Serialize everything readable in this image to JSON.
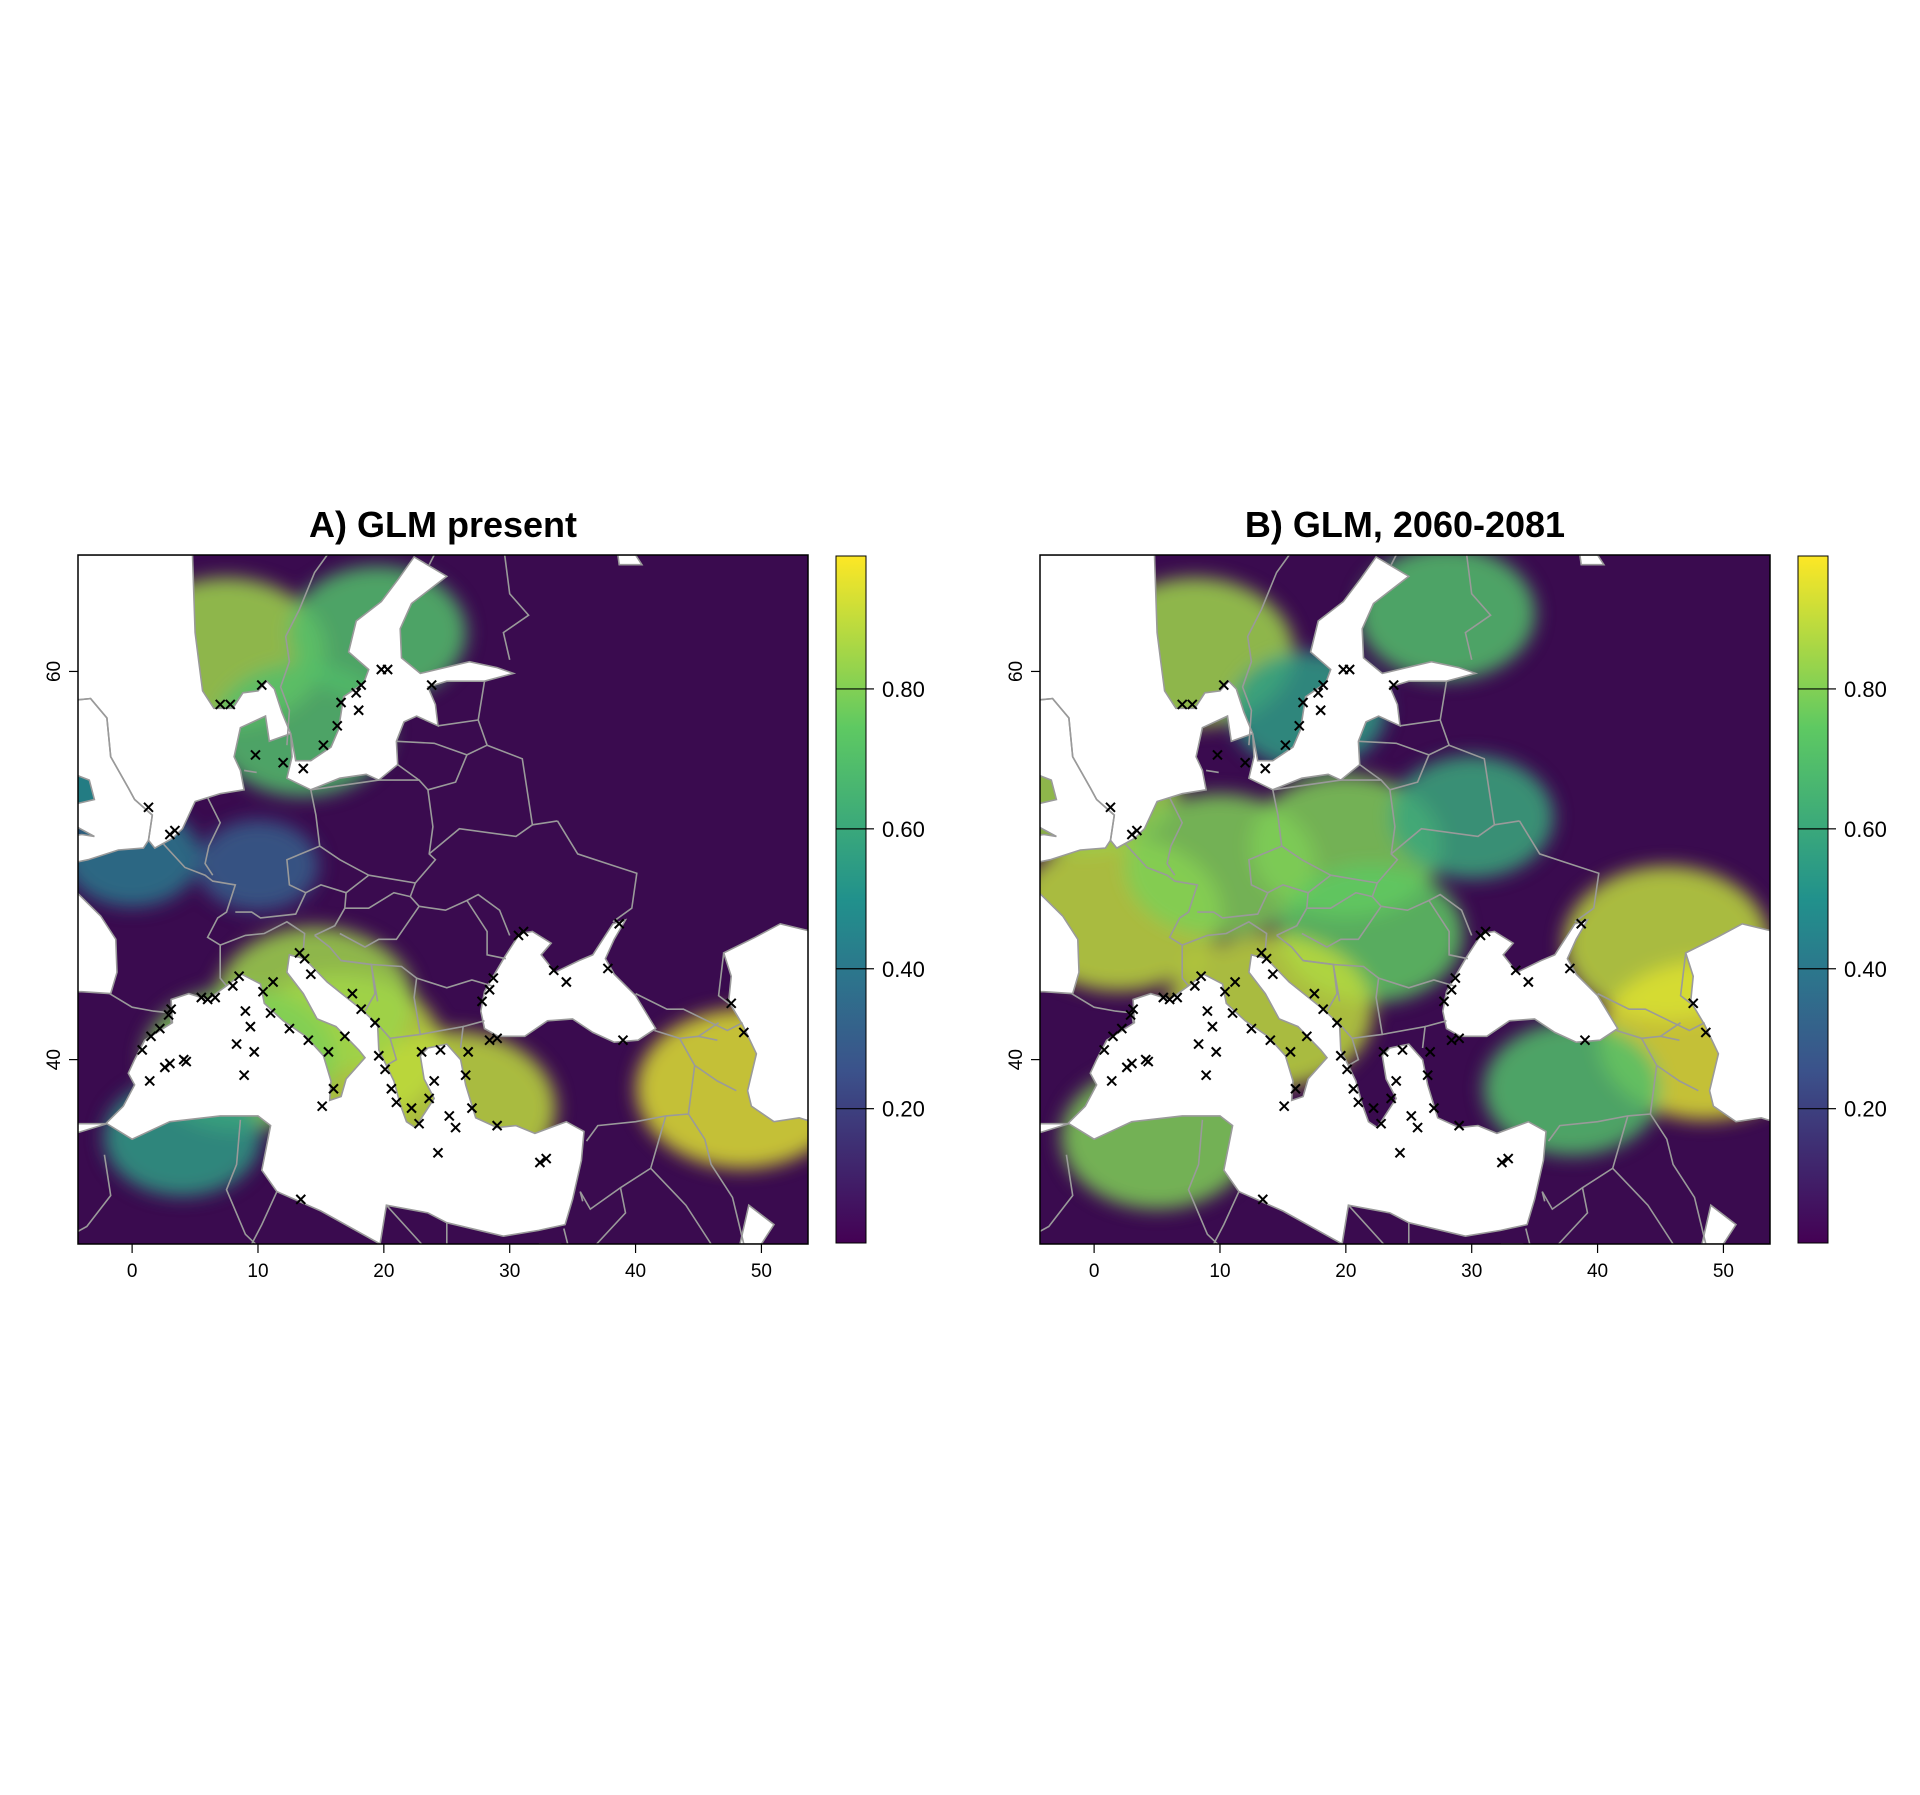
{
  "figure": {
    "panels": [
      {
        "id": "A",
        "title": "A) GLM present",
        "x_ticks": [
          "0",
          "10",
          "20",
          "30",
          "40",
          "50"
        ],
        "y_ticks": [
          "40",
          "60"
        ],
        "colorbar_ticks": [
          "0.20",
          "0.40",
          "0.60",
          "0.80"
        ],
        "hotspots": [
          {
            "lon": 48.5,
            "lat": 38.5,
            "value": 0.95
          },
          {
            "lon": 16.5,
            "lat": 40.5,
            "value": 0.9
          },
          {
            "lon": 25.5,
            "lat": 37.5,
            "value": 0.9
          },
          {
            "lon": 14.5,
            "lat": 43.0,
            "value": 0.85
          },
          {
            "lon": 8.5,
            "lat": 40.0,
            "value": 0.8
          },
          {
            "lon": 7.5,
            "lat": 61.0,
            "value": 0.85
          },
          {
            "lon": 13.5,
            "lat": 57.0,
            "value": 0.7
          },
          {
            "lon": 19.5,
            "lat": 62.0,
            "value": 0.7
          },
          {
            "lon": -2.0,
            "lat": 55.0,
            "value": 0.5
          },
          {
            "lon": 0.0,
            "lat": 50.5,
            "value": 0.4
          },
          {
            "lon": 10.0,
            "lat": 50.0,
            "value": 0.3
          },
          {
            "lon": 4.0,
            "lat": 36.0,
            "value": 0.55
          }
        ]
      },
      {
        "id": "B",
        "title": "B) GLM, 2060-2081",
        "x_ticks": [
          "0",
          "10",
          "20",
          "30",
          "40",
          "50"
        ],
        "y_ticks": [
          "40",
          "60"
        ],
        "colorbar_ticks": [
          "0.20",
          "0.40",
          "0.60",
          "0.80"
        ],
        "hotspots": [
          {
            "lon": 2.0,
            "lat": 47.5,
            "value": 0.9
          },
          {
            "lon": -1.0,
            "lat": 54.5,
            "value": 0.85
          },
          {
            "lon": 10.0,
            "lat": 50.0,
            "value": 0.8
          },
          {
            "lon": 20.0,
            "lat": 51.0,
            "value": 0.8
          },
          {
            "lon": 30.0,
            "lat": 52.5,
            "value": 0.6
          },
          {
            "lon": 22.0,
            "lat": 46.5,
            "value": 0.75
          },
          {
            "lon": 45.5,
            "lat": 46.0,
            "value": 0.9
          },
          {
            "lon": 48.5,
            "lat": 41.0,
            "value": 0.95
          },
          {
            "lon": 14.0,
            "lat": 42.5,
            "value": 0.9
          },
          {
            "lon": 8.0,
            "lat": 61.0,
            "value": 0.85
          },
          {
            "lon": 28.0,
            "lat": 63.0,
            "value": 0.7
          },
          {
            "lon": 5.0,
            "lat": 36.0,
            "value": 0.8
          },
          {
            "lon": 38.0,
            "lat": 38.5,
            "value": 0.7
          },
          {
            "lon": 17.0,
            "lat": 58.0,
            "value": 0.55
          }
        ]
      }
    ],
    "extent": {
      "lon": [
        -4.3,
        53.7
      ],
      "lat": [
        30.5,
        66.0
      ]
    },
    "colormap": [
      "#440154",
      "#3b528b",
      "#21918c",
      "#5ec962",
      "#fde725"
    ],
    "land_background": "#3a0b4f",
    "border_color": "#9a9a9a",
    "marker_color": "#000000",
    "occurrences": [
      {
        "lon": 1.3,
        "lat": 53.0
      },
      {
        "lon": 3.0,
        "lat": 51.6
      },
      {
        "lon": 3.4,
        "lat": 51.8
      },
      {
        "lon": 7.0,
        "lat": 58.3
      },
      {
        "lon": 7.8,
        "lat": 58.3
      },
      {
        "lon": 10.3,
        "lat": 59.3
      },
      {
        "lon": 9.8,
        "lat": 55.7
      },
      {
        "lon": 12.0,
        "lat": 55.3
      },
      {
        "lon": 13.6,
        "lat": 55.0
      },
      {
        "lon": 15.2,
        "lat": 56.2
      },
      {
        "lon": 16.3,
        "lat": 57.2
      },
      {
        "lon": 16.6,
        "lat": 58.4
      },
      {
        "lon": 17.8,
        "lat": 58.9
      },
      {
        "lon": 18.2,
        "lat": 59.3
      },
      {
        "lon": 18.0,
        "lat": 58.0
      },
      {
        "lon": 19.8,
        "lat": 60.1
      },
      {
        "lon": 20.3,
        "lat": 60.1
      },
      {
        "lon": 23.8,
        "lat": 59.3
      },
      {
        "lon": 0.8,
        "lat": 40.5
      },
      {
        "lon": 1.5,
        "lat": 41.2
      },
      {
        "lon": 2.2,
        "lat": 41.6
      },
      {
        "lon": 2.9,
        "lat": 42.3
      },
      {
        "lon": 3.1,
        "lat": 42.6
      },
      {
        "lon": 1.4,
        "lat": 38.9
      },
      {
        "lon": 2.6,
        "lat": 39.6
      },
      {
        "lon": 3.0,
        "lat": 39.8
      },
      {
        "lon": 4.1,
        "lat": 40.0
      },
      {
        "lon": 4.3,
        "lat": 39.9
      },
      {
        "lon": 5.5,
        "lat": 43.2
      },
      {
        "lon": 6.0,
        "lat": 43.1
      },
      {
        "lon": 6.6,
        "lat": 43.2
      },
      {
        "lon": 8.0,
        "lat": 43.8
      },
      {
        "lon": 8.5,
        "lat": 44.3
      },
      {
        "lon": 9.0,
        "lat": 42.5
      },
      {
        "lon": 9.4,
        "lat": 41.7
      },
      {
        "lon": 8.9,
        "lat": 39.2
      },
      {
        "lon": 8.3,
        "lat": 40.8
      },
      {
        "lon": 9.7,
        "lat": 40.4
      },
      {
        "lon": 10.4,
        "lat": 43.5
      },
      {
        "lon": 11.0,
        "lat": 42.4
      },
      {
        "lon": 12.5,
        "lat": 41.6
      },
      {
        "lon": 13.3,
        "lat": 45.5
      },
      {
        "lon": 13.7,
        "lat": 45.2
      },
      {
        "lon": 14.2,
        "lat": 44.4
      },
      {
        "lon": 14.0,
        "lat": 41.0
      },
      {
        "lon": 15.6,
        "lat": 40.4
      },
      {
        "lon": 16.0,
        "lat": 38.5
      },
      {
        "lon": 15.1,
        "lat": 37.6
      },
      {
        "lon": 16.9,
        "lat": 41.2
      },
      {
        "lon": 17.5,
        "lat": 43.4
      },
      {
        "lon": 18.2,
        "lat": 42.6
      },
      {
        "lon": 19.3,
        "lat": 41.9
      },
      {
        "lon": 19.6,
        "lat": 40.2
      },
      {
        "lon": 20.1,
        "lat": 39.5
      },
      {
        "lon": 20.6,
        "lat": 38.5
      },
      {
        "lon": 21.0,
        "lat": 37.8
      },
      {
        "lon": 22.2,
        "lat": 37.5
      },
      {
        "lon": 22.8,
        "lat": 36.7
      },
      {
        "lon": 23.6,
        "lat": 38.0
      },
      {
        "lon": 24.0,
        "lat": 38.9
      },
      {
        "lon": 24.5,
        "lat": 40.5
      },
      {
        "lon": 23.0,
        "lat": 40.4
      },
      {
        "lon": 25.2,
        "lat": 37.1
      },
      {
        "lon": 25.7,
        "lat": 36.5
      },
      {
        "lon": 26.5,
        "lat": 39.2
      },
      {
        "lon": 26.7,
        "lat": 40.4
      },
      {
        "lon": 27.0,
        "lat": 37.5
      },
      {
        "lon": 28.4,
        "lat": 41.0
      },
      {
        "lon": 29.0,
        "lat": 41.1
      },
      {
        "lon": 27.8,
        "lat": 43.0
      },
      {
        "lon": 28.4,
        "lat": 43.6
      },
      {
        "lon": 28.7,
        "lat": 44.2
      },
      {
        "lon": 30.7,
        "lat": 46.4
      },
      {
        "lon": 31.1,
        "lat": 46.6
      },
      {
        "lon": 33.5,
        "lat": 44.6
      },
      {
        "lon": 34.5,
        "lat": 44.0
      },
      {
        "lon": 37.8,
        "lat": 44.7
      },
      {
        "lon": 38.7,
        "lat": 47.0
      },
      {
        "lon": 39.0,
        "lat": 41.0
      },
      {
        "lon": 24.3,
        "lat": 35.2
      },
      {
        "lon": 29.0,
        "lat": 36.6
      },
      {
        "lon": 32.4,
        "lat": 34.7
      },
      {
        "lon": 32.9,
        "lat": 34.9
      },
      {
        "lon": 13.4,
        "lat": 32.8
      },
      {
        "lon": 47.6,
        "lat": 42.9
      },
      {
        "lon": 48.6,
        "lat": 41.4
      },
      {
        "lon": 11.2,
        "lat": 44.0
      }
    ]
  }
}
